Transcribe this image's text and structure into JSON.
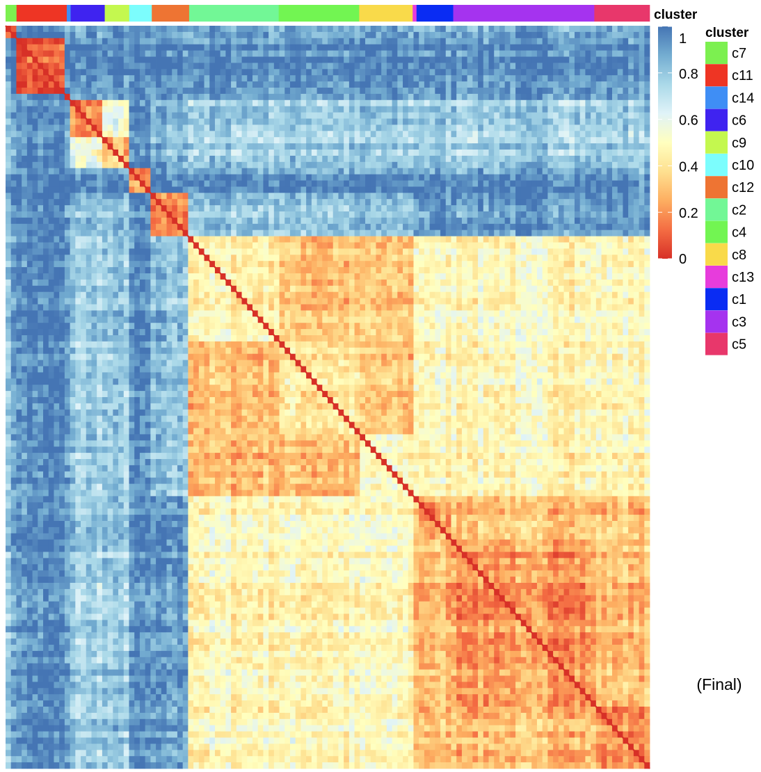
{
  "chart_data": {
    "type": "heatmap",
    "title": "",
    "note": "(Final)",
    "annotation_title": "cluster",
    "value_range": [
      0,
      1
    ],
    "colorbar": {
      "ticks": [
        "1",
        "0.8",
        "0.6",
        "0.4",
        "0.2",
        "0"
      ],
      "tick_values": [
        1,
        0.8,
        0.6,
        0.4,
        0.2,
        0
      ],
      "colors": [
        "#d73027",
        "#f46d43",
        "#fdae61",
        "#fee090",
        "#ffffbf",
        "#e0f3f8",
        "#abd9e9",
        "#74add1",
        "#4575b4"
      ]
    },
    "legend": {
      "title": "cluster",
      "items": [
        {
          "label": "c7",
          "color": "#7cf050"
        },
        {
          "label": "c11",
          "color": "#ee3524"
        },
        {
          "label": "c14",
          "color": "#3f8ef5"
        },
        {
          "label": "c6",
          "color": "#3f23f0"
        },
        {
          "label": "c9",
          "color": "#c4f84f"
        },
        {
          "label": "c10",
          "color": "#7cfdfd"
        },
        {
          "label": "c12",
          "color": "#ee7433"
        },
        {
          "label": "c2",
          "color": "#72f796"
        },
        {
          "label": "c4",
          "color": "#72f552"
        },
        {
          "label": "c8",
          "color": "#f9da4a"
        },
        {
          "label": "c13",
          "color": "#e73cdc"
        },
        {
          "label": "c1",
          "color": "#0a2cf3"
        },
        {
          "label": "c3",
          "color": "#a533ef"
        },
        {
          "label": "c5",
          "color": "#e8376b"
        }
      ]
    },
    "cluster_order": [
      {
        "cluster": "c7",
        "share": 0.017
      },
      {
        "cluster": "c11",
        "share": 0.078
      },
      {
        "cluster": "c14",
        "share": 0.006
      },
      {
        "cluster": "c6",
        "share": 0.053
      },
      {
        "cluster": "c9",
        "share": 0.038
      },
      {
        "cluster": "c10",
        "share": 0.035
      },
      {
        "cluster": "c12",
        "share": 0.058
      },
      {
        "cluster": "c2",
        "share": 0.139
      },
      {
        "cluster": "c4",
        "share": 0.125
      },
      {
        "cluster": "c8",
        "share": 0.083
      },
      {
        "cluster": "c13",
        "share": 0.006
      },
      {
        "cluster": "c1",
        "share": 0.057
      },
      {
        "cluster": "c3",
        "share": 0.219
      },
      {
        "cluster": "c5",
        "share": 0.086
      }
    ],
    "block_values": {
      "diagonal": 0.0,
      "within_cluster": {
        "c7": 0.1,
        "c11": 0.08,
        "c14": 0.1,
        "c6": 0.2,
        "c9": 0.3,
        "c10": 0.18,
        "c12": 0.15,
        "c2": 0.45,
        "c4": 0.42,
        "c8": 0.5,
        "c13": 0.4,
        "c1": 0.2,
        "c3": 0.22,
        "c5": 0.2
      },
      "c11_vs_others": 0.95,
      "c10_vs_others": 0.92,
      "c6_c9_vs_large": 0.78,
      "large_vs_large": 0.48
    }
  }
}
